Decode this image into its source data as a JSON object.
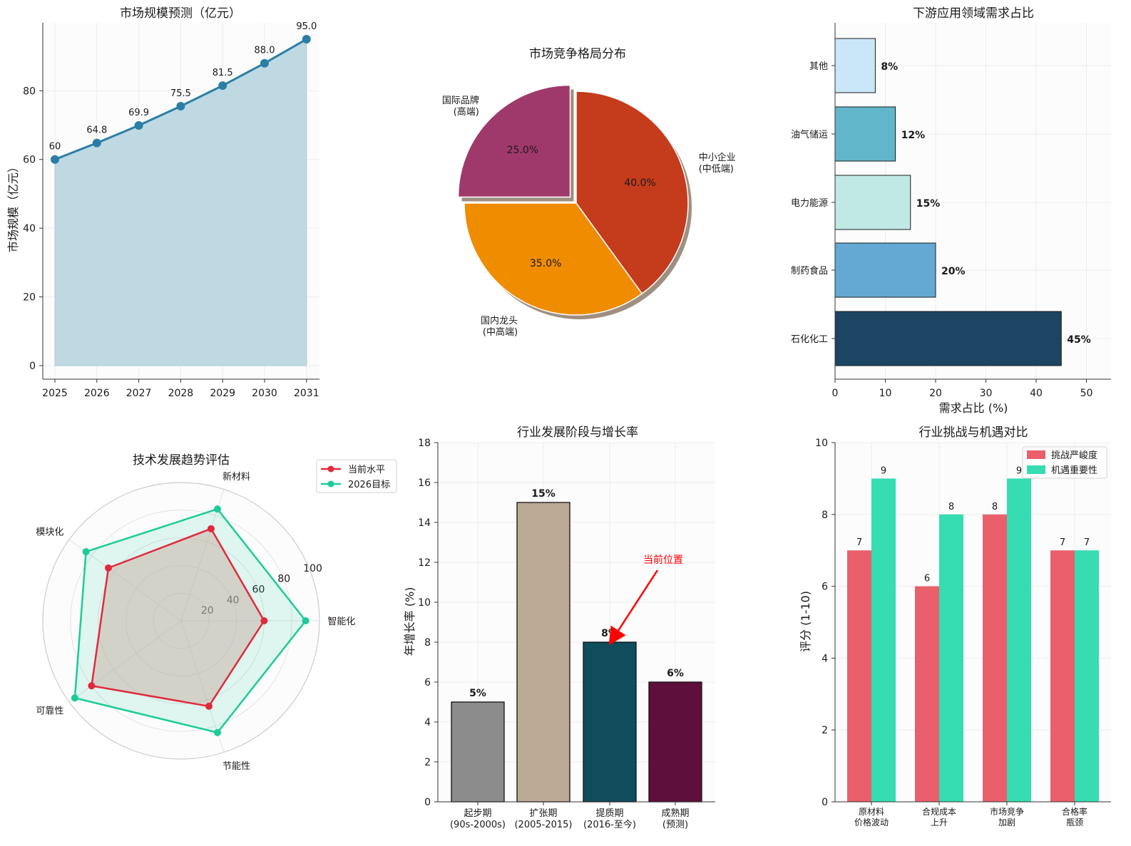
{
  "chart_data": [
    {
      "type": "area",
      "title": "市场规模预测（亿元）",
      "xlabel": "",
      "ylabel": "市场规模（亿元）",
      "x": [
        "2025",
        "2026",
        "2027",
        "2028",
        "2029",
        "2030",
        "2031"
      ],
      "values": [
        60,
        64.8,
        69.9,
        75.5,
        81.5,
        88.0,
        95.0
      ],
      "value_labels": [
        "60",
        "64.8",
        "69.9",
        "75.5",
        "81.5",
        "88.0",
        "95.0"
      ],
      "ylim": [
        0,
        100
      ],
      "yticks": [
        0,
        20,
        40,
        60,
        80
      ],
      "colors": {
        "line": "#2a7ea6",
        "fill": "#bfd9e3"
      }
    },
    {
      "type": "pie",
      "title": "市场竞争格局分布",
      "slices": [
        {
          "label": "中小企业\n(中低端)",
          "value": 40.0,
          "pct": "40.0%",
          "color": "#c43c1c"
        },
        {
          "label": "国内龙头\n(中高端)",
          "value": 35.0,
          "pct": "35.0%",
          "color": "#f08c00"
        },
        {
          "label": "国际品牌\n(高端)",
          "value": 25.0,
          "pct": "25.0%",
          "color": "#a0396b"
        }
      ]
    },
    {
      "type": "bar",
      "orientation": "horizontal",
      "title": "下游应用领域需求占比",
      "xlabel": "需求占比 (%)",
      "ylabel": "",
      "categories": [
        "石化化工",
        "制药食品",
        "电力能源",
        "油气储运",
        "其他"
      ],
      "values": [
        45,
        20,
        15,
        12,
        8
      ],
      "value_labels": [
        "45%",
        "20%",
        "15%",
        "12%",
        "8%"
      ],
      "colors": [
        "#1b4563",
        "#63a9d4",
        "#c0e9e6",
        "#62b6ca",
        "#cae7f9"
      ],
      "xlim": [
        0,
        55
      ],
      "xticks": [
        0,
        10,
        20,
        30,
        40,
        50
      ]
    },
    {
      "type": "radar",
      "title": "技术发展趋势评估",
      "axes": [
        "智能化",
        "新材料",
        "模块化",
        "可靠性",
        "节能性"
      ],
      "rlim": [
        0,
        100
      ],
      "rticks": [
        20,
        40,
        60,
        80,
        100
      ],
      "series": [
        {
          "name": "当前水平",
          "values": [
            60,
            70,
            65,
            80,
            65
          ],
          "color": "#e02a3c"
        },
        {
          "name": "2026目标",
          "values": [
            90,
            85,
            85,
            95,
            85
          ],
          "color": "#1ccb9a"
        }
      ]
    },
    {
      "type": "bar",
      "title": "行业发展阶段与增长率",
      "xlabel": "",
      "ylabel": "年增长率 (%)",
      "categories": [
        "起步期\n(90s-2000s)",
        "扩张期\n(2005-2015)",
        "提质期\n(2016-至今)",
        "成熟期\n(预测)"
      ],
      "values": [
        5,
        15,
        8,
        6
      ],
      "value_labels": [
        "5%",
        "15%",
        "8%",
        "6%"
      ],
      "colors": [
        "#8c8c8c",
        "#bca996",
        "#0f4c5c",
        "#5e0f3b"
      ],
      "ylim": [
        0,
        18
      ],
      "yticks": [
        0,
        2,
        4,
        6,
        8,
        10,
        12,
        14,
        16,
        18
      ],
      "annotation": {
        "text": "当前位置",
        "category_index": 2,
        "value": 8,
        "color": "#ff0000"
      }
    },
    {
      "type": "bar",
      "title": "行业挑战与机遇对比",
      "xlabel": "",
      "ylabel": "评分 (1-10)",
      "categories": [
        "原材料\n价格波动",
        "合规成本\n上升",
        "市场竞争\n加剧",
        "合格率\n瓶颈"
      ],
      "series": [
        {
          "name": "挑战严峻度",
          "values": [
            7,
            6,
            8,
            7
          ],
          "color": "#e9606c"
        },
        {
          "name": "机遇重要性",
          "values": [
            9,
            8,
            9,
            7
          ],
          "color": "#36dcb2"
        }
      ],
      "ylim": [
        0,
        10
      ],
      "yticks": [
        0,
        2,
        4,
        6,
        8,
        10
      ]
    }
  ]
}
